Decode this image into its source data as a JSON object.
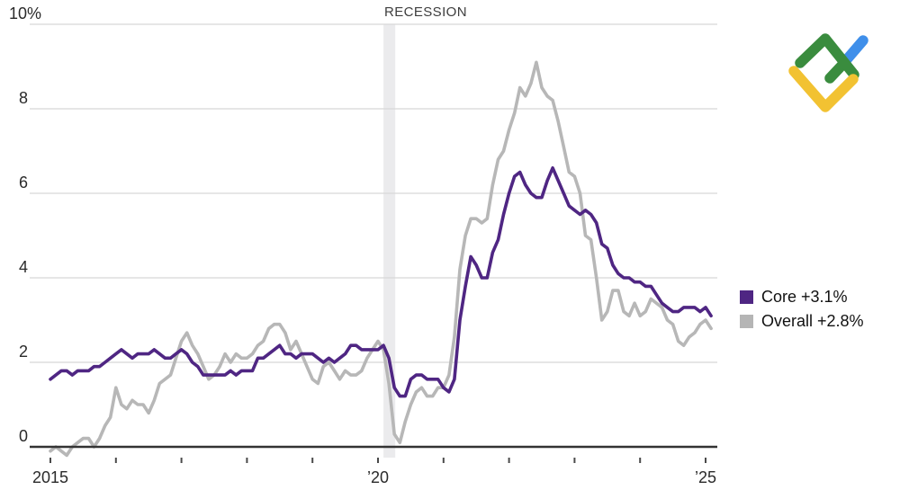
{
  "annotations": {
    "recession_label": "RECESSION"
  },
  "y_axis": {
    "tick_labels": [
      "0",
      "2",
      "4",
      "6",
      "8",
      "10%"
    ]
  },
  "x_axis": {
    "tick_years": [
      2015,
      2016,
      2017,
      2018,
      2019,
      2020,
      2021,
      2022,
      2023,
      2024,
      2025
    ],
    "labels": [
      {
        "year": 2015,
        "text": "2015"
      },
      {
        "year": 2020,
        "text": "’20"
      },
      {
        "year": 2025,
        "text": "’25"
      }
    ]
  },
  "legend": {
    "items": [
      {
        "name": "Core",
        "label": "Core +3.1%",
        "color": "#4f2683"
      },
      {
        "name": "Overall",
        "label": "Overall +2.8%",
        "color": "#b5b5b5"
      }
    ]
  },
  "colors": {
    "core_line": "#4f2683",
    "overall_line": "#b7b7b7",
    "gridline": "#d8d8d8",
    "axis_line": "#333333",
    "tick": "#4a4a4a",
    "recession_band": "#ebebed",
    "text": "#2a2a2a"
  },
  "logo": {
    "title": "LiteFinance logo",
    "colors": {
      "green": "#3a8c3e",
      "blue": "#3f8fea",
      "yellow": "#f2c232"
    }
  },
  "chart_data": {
    "type": "line",
    "x_unit": "month",
    "x_start": "2015-01",
    "x_end": "2025-02",
    "x_tick_interval": "1 year",
    "ylim": [
      -0.5,
      10
    ],
    "yticks": [
      0,
      2,
      4,
      6,
      8,
      10
    ],
    "ylabel_format": "percent",
    "grid": "horizontal",
    "legend_position": "right",
    "recession_band": {
      "label": "RECESSION",
      "x_start": "2020-02",
      "x_end": "2020-04"
    },
    "series": [
      {
        "name": "Core",
        "legend_label": "Core +3.1%",
        "color": "#4f2683",
        "latest_value": 3.1,
        "values": [
          1.6,
          1.7,
          1.8,
          1.8,
          1.7,
          1.8,
          1.8,
          1.8,
          1.9,
          1.9,
          2.0,
          2.1,
          2.2,
          2.3,
          2.2,
          2.1,
          2.2,
          2.2,
          2.2,
          2.3,
          2.2,
          2.1,
          2.1,
          2.2,
          2.3,
          2.2,
          2.0,
          1.9,
          1.7,
          1.7,
          1.7,
          1.7,
          1.7,
          1.8,
          1.7,
          1.8,
          1.8,
          1.8,
          2.1,
          2.1,
          2.2,
          2.3,
          2.4,
          2.2,
          2.2,
          2.1,
          2.2,
          2.2,
          2.2,
          2.1,
          2.0,
          2.1,
          2.0,
          2.1,
          2.2,
          2.4,
          2.4,
          2.3,
          2.3,
          2.3,
          2.3,
          2.4,
          2.1,
          1.4,
          1.2,
          1.2,
          1.6,
          1.7,
          1.7,
          1.6,
          1.6,
          1.6,
          1.4,
          1.3,
          1.6,
          3.0,
          3.8,
          4.5,
          4.3,
          4.0,
          4.0,
          4.6,
          4.9,
          5.5,
          6.0,
          6.4,
          6.5,
          6.2,
          6.0,
          5.9,
          5.9,
          6.3,
          6.6,
          6.3,
          6.0,
          5.7,
          5.6,
          5.5,
          5.6,
          5.5,
          5.3,
          4.8,
          4.7,
          4.3,
          4.1,
          4.0,
          4.0,
          3.9,
          3.9,
          3.8,
          3.8,
          3.6,
          3.4,
          3.3,
          3.2,
          3.2,
          3.3,
          3.3,
          3.3,
          3.2,
          3.3,
          3.1
        ]
      },
      {
        "name": "Overall",
        "legend_label": "Overall +2.8%",
        "color": "#b7b7b7",
        "latest_value": 2.8,
        "values": [
          -0.1,
          0.0,
          -0.1,
          -0.2,
          0.0,
          0.1,
          0.2,
          0.2,
          0.0,
          0.2,
          0.5,
          0.7,
          1.4,
          1.0,
          0.9,
          1.1,
          1.0,
          1.0,
          0.8,
          1.1,
          1.5,
          1.6,
          1.7,
          2.1,
          2.5,
          2.7,
          2.4,
          2.2,
          1.9,
          1.6,
          1.7,
          1.9,
          2.2,
          2.0,
          2.2,
          2.1,
          2.1,
          2.2,
          2.4,
          2.5,
          2.8,
          2.9,
          2.9,
          2.7,
          2.3,
          2.5,
          2.2,
          1.9,
          1.6,
          1.5,
          1.9,
          2.0,
          1.8,
          1.6,
          1.8,
          1.7,
          1.7,
          1.8,
          2.1,
          2.3,
          2.5,
          2.3,
          1.5,
          0.3,
          0.1,
          0.6,
          1.0,
          1.3,
          1.4,
          1.2,
          1.2,
          1.4,
          1.4,
          1.7,
          2.6,
          4.2,
          5.0,
          5.4,
          5.4,
          5.3,
          5.4,
          6.2,
          6.8,
          7.0,
          7.5,
          7.9,
          8.5,
          8.3,
          8.6,
          9.1,
          8.5,
          8.3,
          8.2,
          7.7,
          7.1,
          6.5,
          6.4,
          6.0,
          5.0,
          4.9,
          4.0,
          3.0,
          3.2,
          3.7,
          3.7,
          3.2,
          3.1,
          3.4,
          3.1,
          3.2,
          3.5,
          3.4,
          3.3,
          3.0,
          2.9,
          2.5,
          2.4,
          2.6,
          2.7,
          2.9,
          3.0,
          2.8
        ]
      }
    ]
  }
}
